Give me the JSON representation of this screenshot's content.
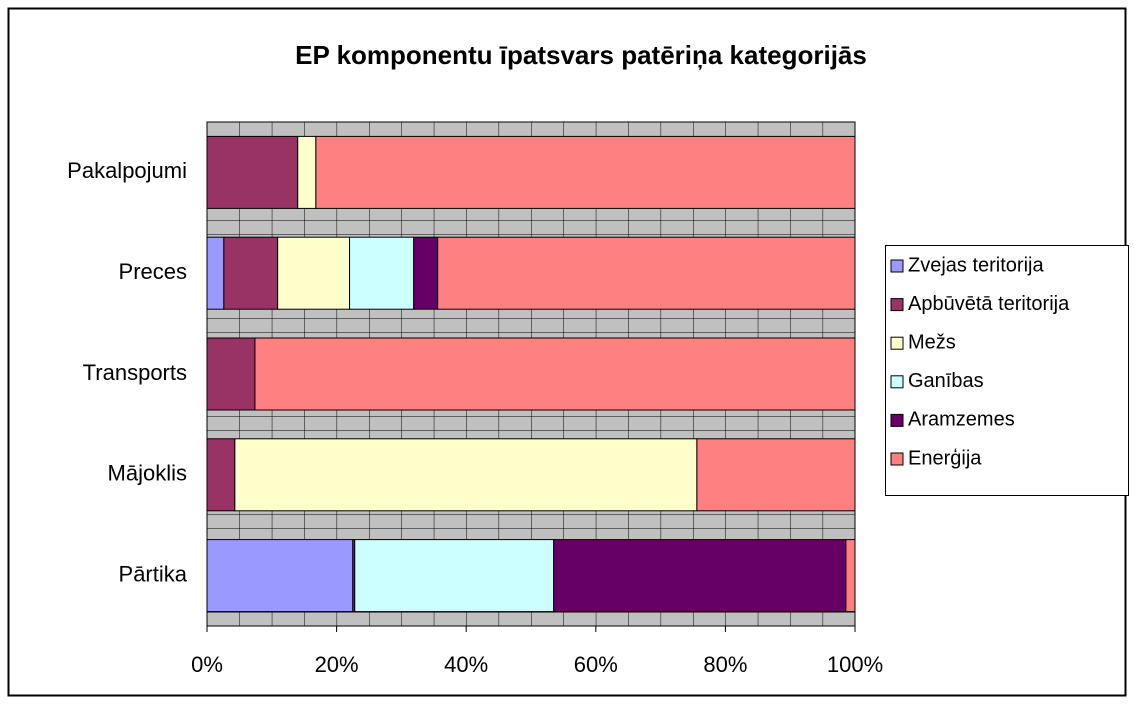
{
  "chart_data": {
    "type": "bar",
    "orientation": "horizontal",
    "stacked": true,
    "title": "EP komponentu īpatsvars patēriņa kategorijās",
    "categories": [
      "Pārtika",
      "Mājoklis",
      "Transports",
      "Preces",
      "Pakalpojumi"
    ],
    "series": [
      {
        "name": "Zvejas teritorija",
        "color": "#9999ff",
        "values": [
          22.5,
          0,
          0,
          2.6,
          0
        ]
      },
      {
        "name": "Apbūvētā teritorija",
        "color": "#993366",
        "values": [
          0.3,
          4.3,
          7.4,
          8.3,
          14.0
        ]
      },
      {
        "name": "Mežs",
        "color": "#ffffcc",
        "values": [
          0,
          71.3,
          0,
          11.1,
          2.8
        ]
      },
      {
        "name": "Ganības",
        "color": "#ccffff",
        "values": [
          30.7,
          0,
          0,
          9.9,
          0
        ]
      },
      {
        "name": "Aramzemes",
        "color": "#660066",
        "values": [
          45.1,
          0,
          0,
          3.7,
          0
        ]
      },
      {
        "name": "Enerģija",
        "color": "#ff8080",
        "values": [
          1.4,
          24.4,
          92.6,
          64.4,
          83.2
        ]
      }
    ],
    "xlim": [
      0,
      100
    ],
    "xticks": [
      {
        "value": 0,
        "label": "0%"
      },
      {
        "value": 20,
        "label": "20%"
      },
      {
        "value": 40,
        "label": "40%"
      },
      {
        "value": 60,
        "label": "60%"
      },
      {
        "value": 80,
        "label": "80%"
      },
      {
        "value": 100,
        "label": "100%"
      }
    ],
    "legend": "right"
  }
}
